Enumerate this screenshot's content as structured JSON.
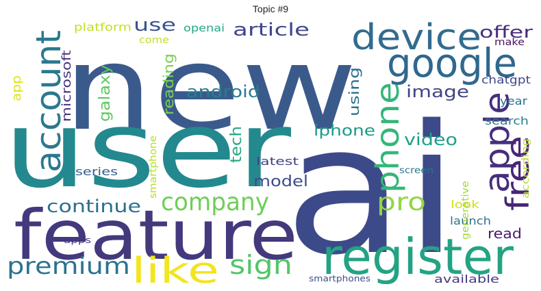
{
  "chart_data": {
    "type": "wordcloud",
    "title": "Topic #9",
    "words": [
      {
        "text": "new",
        "color": "#3b5a8c"
      },
      {
        "text": "user",
        "color": "#23898e"
      },
      {
        "text": "ai",
        "color": "#3d4a89"
      },
      {
        "text": "feature",
        "color": "#43397d"
      },
      {
        "text": "register",
        "color": "#24a383"
      },
      {
        "text": "google",
        "color": "#30688e"
      },
      {
        "text": "device",
        "color": "#336b8f"
      },
      {
        "text": "account",
        "color": "#2b788e"
      },
      {
        "text": "apple",
        "color": "#472e7c"
      },
      {
        "text": "phone",
        "color": "#34b679"
      },
      {
        "text": "free",
        "color": "#482576"
      },
      {
        "text": "like",
        "color": "#f2e51d"
      },
      {
        "text": "company",
        "color": "#6ece58"
      },
      {
        "text": "premium",
        "color": "#2b738e"
      },
      {
        "text": "sign",
        "color": "#52c569"
      },
      {
        "text": "pro",
        "color": "#90d743"
      },
      {
        "text": "continue",
        "color": "#2d708e"
      },
      {
        "text": "article",
        "color": "#404688"
      },
      {
        "text": "use",
        "color": "#3a548c"
      },
      {
        "text": "offer",
        "color": "#472d7b"
      },
      {
        "text": "microsoft",
        "color": "#46327e"
      },
      {
        "text": "reading",
        "color": "#7ad151"
      },
      {
        "text": "galaxy",
        "color": "#5ec962"
      },
      {
        "text": "android",
        "color": "#287d8e"
      },
      {
        "text": "tech",
        "color": "#22a884"
      },
      {
        "text": "using",
        "color": "#2c718e"
      },
      {
        "text": "image",
        "color": "#414487"
      },
      {
        "text": "iphone",
        "color": "#1f9a8a"
      },
      {
        "text": "video",
        "color": "#1fa088"
      },
      {
        "text": "model",
        "color": "#3e4c8a"
      },
      {
        "text": "app",
        "color": "#dde318"
      },
      {
        "text": "platform",
        "color": "#c2df23"
      },
      {
        "text": "openai",
        "color": "#22a785"
      },
      {
        "text": "come",
        "color": "#c0df25"
      },
      {
        "text": "make",
        "color": "#471164"
      },
      {
        "text": "chatgpt",
        "color": "#3f4788"
      },
      {
        "text": "year",
        "color": "#2e6f8e"
      },
      {
        "text": "search",
        "color": "#277f8e"
      },
      {
        "text": "latest",
        "color": "#424186"
      },
      {
        "text": "series",
        "color": "#355f8d"
      },
      {
        "text": "smartphone",
        "color": "#b5de2b"
      },
      {
        "text": "screen",
        "color": "#2a768e"
      },
      {
        "text": "look",
        "color": "#d0e11c"
      },
      {
        "text": "launch",
        "color": "#2c738e"
      },
      {
        "text": "read",
        "color": "#481b6d"
      },
      {
        "text": "generative",
        "color": "#a2da37"
      },
      {
        "text": "according",
        "color": "#b8de29"
      },
      {
        "text": "available",
        "color": "#453882"
      },
      {
        "text": "apps",
        "color": "#453781"
      },
      {
        "text": "smartphones",
        "color": "#3d4e8a"
      }
    ]
  }
}
